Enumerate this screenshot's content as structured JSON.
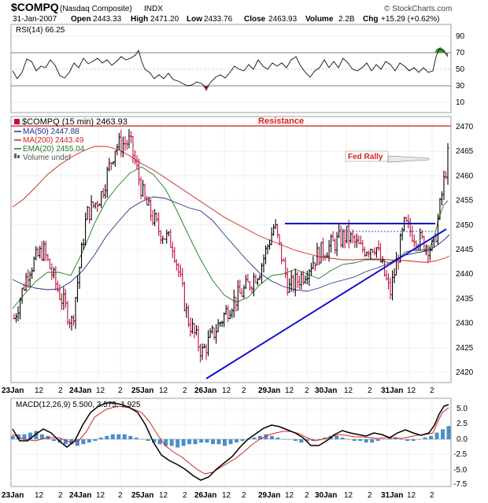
{
  "header": {
    "symbol": "$COMPQ",
    "name": "(Nasdaq Composite)",
    "exchange": "INDX",
    "credit": "© StockCharts.com",
    "date": "31-Jan-2007",
    "open_label": "Open",
    "open": "2443.33",
    "high_label": "High",
    "high": "2471.20",
    "low_label": "Low",
    "low": "2433.76",
    "close_label": "Close",
    "close": "2463.93",
    "volume_label": "Volume",
    "volume": "2.2B",
    "chg_label": "Chg",
    "chg": "+15.29 (+0.62%)"
  },
  "rsi_panel": {
    "label": "RSI(14) 66.25",
    "ticks": [
      "90",
      "70",
      "50",
      "30",
      "10"
    ]
  },
  "price_panel": {
    "title": "$COMPQ (15 min) 2463.93",
    "legend": [
      {
        "text": "MA(50) 2447.88",
        "color": "#2a2a8c"
      },
      {
        "text": "MA(200) 2443.49",
        "color": "#d42020"
      },
      {
        "text": "EMA(20) 2455.04",
        "color": "#1f7a1f"
      },
      {
        "text": "Volume undef",
        "color": "#666666"
      }
    ],
    "annotations": {
      "resistance": "Resistance",
      "fed_rally": "Fed Rally"
    },
    "y_ticks": [
      "2470",
      "2465",
      "2460",
      "2455",
      "2450",
      "2445",
      "2440",
      "2435",
      "2430",
      "2425",
      "2420"
    ]
  },
  "macd_panel": {
    "label": "MACD(12,26,9) 5.500, 3.575, 1.925",
    "values": {
      "macd": "5.500",
      "signal": "3.575",
      "hist": "1.925"
    },
    "ticks": [
      "5.0",
      "2.5",
      "0.0",
      "-2.5",
      "-5.0",
      "-7.5"
    ]
  },
  "x_axis": {
    "labels": [
      "23Jan",
      "12",
      "2",
      "24Jan",
      "12",
      "2",
      "25Jan",
      "12",
      "2",
      "26Jan",
      "12",
      "2",
      "29Jan",
      "12",
      "2",
      "30Jan",
      "12",
      "2",
      "31Jan",
      "12",
      "2"
    ]
  },
  "colors": {
    "up": "#000000",
    "down": "#c0103c",
    "ma50": "#2a2a8c",
    "ma200": "#d42020",
    "ema20": "#1f7a1f",
    "trend": "#1010d0",
    "hist": "#4a8fc8",
    "macd": "#000000",
    "signal": "#e02020"
  },
  "chart_data": {
    "type": "line",
    "series": [
      {
        "name": "$COMPQ (15 min)",
        "days": [
          "23Jan",
          "24Jan",
          "25Jan",
          "26Jan",
          "29Jan",
          "30Jan",
          "31Jan"
        ],
        "approx_close_path": [
          2431,
          2441,
          2445,
          2437,
          2430,
          2452,
          2456,
          2466,
          2467,
          2455,
          2449,
          2446,
          2431,
          2424,
          2429,
          2434,
          2437,
          2441,
          2450,
          2437,
          2440,
          2444,
          2446,
          2448,
          2445,
          2446,
          2436,
          2450,
          2447,
          2445,
          2463.93
        ]
      },
      {
        "name": "MA(50)",
        "last": 2447.88
      },
      {
        "name": "MA(200)",
        "last": 2443.49
      },
      {
        "name": "EMA(20)",
        "last": 2455.04
      }
    ],
    "resistance_level": 2470,
    "horizontal_level": 2450,
    "trendline": {
      "from": [
        "26Jan",
        2419
      ],
      "to": [
        "31Jan 2",
        2449
      ]
    },
    "ylim": [
      2418,
      2472
    ],
    "rsi": {
      "last": 66.25,
      "ylim": [
        0,
        100
      ]
    },
    "macd": {
      "macd": 5.5,
      "signal": 3.575,
      "hist": 1.925,
      "ylim": [
        -8.5,
        6.5
      ]
    }
  }
}
